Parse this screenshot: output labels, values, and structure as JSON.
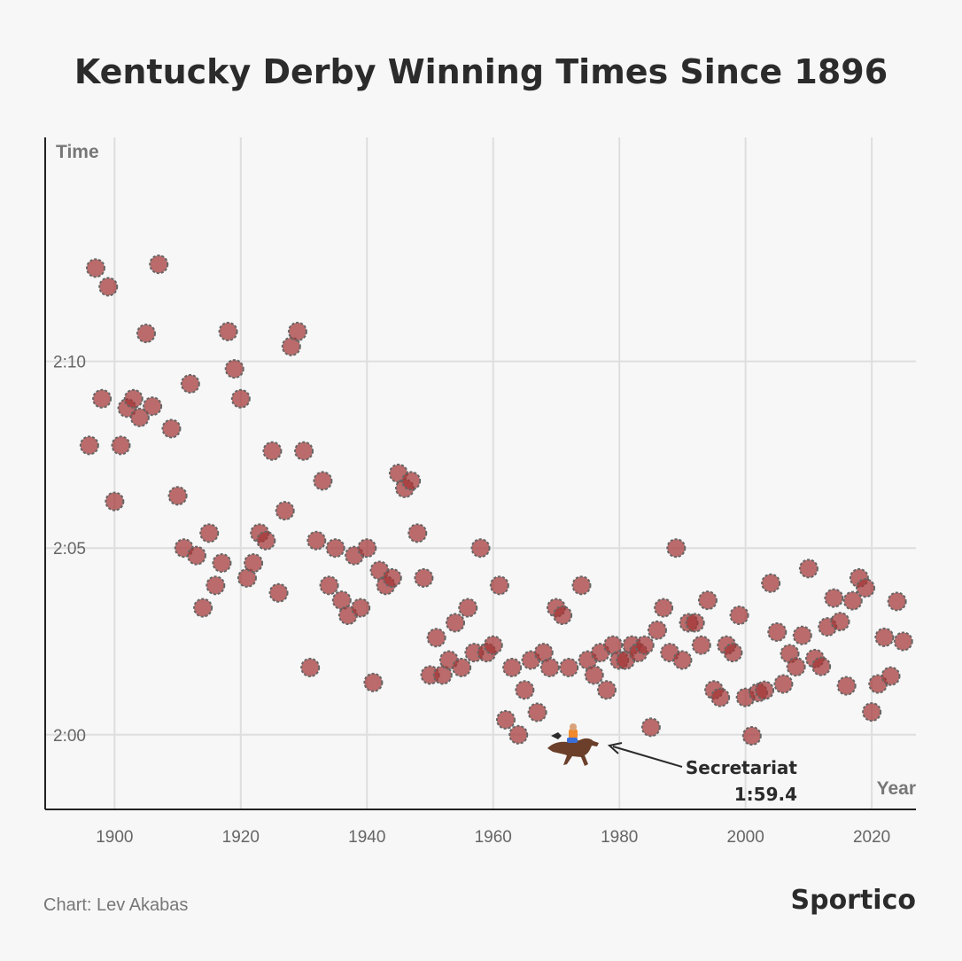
{
  "chart_data": {
    "type": "scatter",
    "title": "Kentucky Derby Winning Times Since 1896",
    "xlabel": "Year",
    "ylabel": "Time",
    "xlim": [
      1889,
      2027
    ],
    "ylim": [
      118.0,
      136.0
    ],
    "x_ticks": [
      1900,
      1920,
      1940,
      1960,
      1980,
      2000,
      2020
    ],
    "x_tick_labels": [
      "1900",
      "1920",
      "1940",
      "1960",
      "1980",
      "2000",
      "2020"
    ],
    "y_ticks": [
      120,
      125,
      130
    ],
    "y_tick_labels": [
      "2:00",
      "2:05",
      "2:10"
    ],
    "grid": true,
    "point_color": "#a33535",
    "points": [
      [
        1896,
        127.75
      ],
      [
        1897,
        132.5
      ],
      [
        1898,
        129.0
      ],
      [
        1899,
        132.0
      ],
      [
        1900,
        126.25
      ],
      [
        1901,
        127.75
      ],
      [
        1902,
        128.75
      ],
      [
        1903,
        129.0
      ],
      [
        1904,
        128.5
      ],
      [
        1905,
        130.75
      ],
      [
        1906,
        128.8
      ],
      [
        1907,
        132.6
      ],
      [
        1909,
        128.2
      ],
      [
        1910,
        126.4
      ],
      [
        1911,
        125.0
      ],
      [
        1912,
        129.4
      ],
      [
        1913,
        124.8
      ],
      [
        1914,
        123.4
      ],
      [
        1915,
        125.4
      ],
      [
        1916,
        124.0
      ],
      [
        1917,
        124.6
      ],
      [
        1918,
        130.8
      ],
      [
        1919,
        129.8
      ],
      [
        1920,
        129.0
      ],
      [
        1921,
        124.2
      ],
      [
        1922,
        124.6
      ],
      [
        1923,
        125.4
      ],
      [
        1924,
        125.2
      ],
      [
        1925,
        127.6
      ],
      [
        1926,
        123.8
      ],
      [
        1927,
        126.0
      ],
      [
        1928,
        130.4
      ],
      [
        1929,
        130.8
      ],
      [
        1930,
        127.6
      ],
      [
        1931,
        121.8
      ],
      [
        1932,
        125.2
      ],
      [
        1933,
        126.8
      ],
      [
        1934,
        124.0
      ],
      [
        1935,
        125.0
      ],
      [
        1936,
        123.6
      ],
      [
        1937,
        123.2
      ],
      [
        1938,
        124.8
      ],
      [
        1939,
        123.4
      ],
      [
        1940,
        125.0
      ],
      [
        1941,
        121.4
      ],
      [
        1942,
        124.4
      ],
      [
        1943,
        124.0
      ],
      [
        1944,
        124.2
      ],
      [
        1945,
        127.0
      ],
      [
        1946,
        126.6
      ],
      [
        1947,
        126.8
      ],
      [
        1948,
        125.4
      ],
      [
        1949,
        124.2
      ],
      [
        1950,
        121.6
      ],
      [
        1951,
        122.6
      ],
      [
        1952,
        121.6
      ],
      [
        1953,
        122.0
      ],
      [
        1954,
        123.0
      ],
      [
        1955,
        121.8
      ],
      [
        1956,
        123.4
      ],
      [
        1957,
        122.2
      ],
      [
        1958,
        125.0
      ],
      [
        1959,
        122.2
      ],
      [
        1960,
        122.4
      ],
      [
        1961,
        124.0
      ],
      [
        1962,
        120.4
      ],
      [
        1963,
        121.8
      ],
      [
        1964,
        120.0
      ],
      [
        1965,
        121.2
      ],
      [
        1966,
        122.0
      ],
      [
        1967,
        120.6
      ],
      [
        1968,
        122.2
      ],
      [
        1969,
        121.8
      ],
      [
        1970,
        123.4
      ],
      [
        1971,
        123.2
      ],
      [
        1972,
        121.8
      ],
      [
        1974,
        124.0
      ],
      [
        1975,
        122.0
      ],
      [
        1976,
        121.6
      ],
      [
        1977,
        122.2
      ],
      [
        1978,
        121.2
      ],
      [
        1979,
        122.4
      ],
      [
        1980,
        122.0
      ],
      [
        1981,
        122.0
      ],
      [
        1982,
        122.4
      ],
      [
        1983,
        122.2
      ],
      [
        1984,
        122.4
      ],
      [
        1985,
        120.2
      ],
      [
        1986,
        122.8
      ],
      [
        1987,
        123.4
      ],
      [
        1988,
        122.2
      ],
      [
        1989,
        125.0
      ],
      [
        1990,
        122.0
      ],
      [
        1991,
        123.0
      ],
      [
        1992,
        123.0
      ],
      [
        1993,
        122.4
      ],
      [
        1994,
        123.6
      ],
      [
        1995,
        121.2
      ],
      [
        1996,
        121.0
      ],
      [
        1997,
        122.4
      ],
      [
        1998,
        122.2
      ],
      [
        1999,
        123.2
      ],
      [
        2000,
        121.0
      ],
      [
        2001,
        119.97
      ],
      [
        2002,
        121.13
      ],
      [
        2003,
        121.19
      ],
      [
        2004,
        124.06
      ],
      [
        2005,
        122.75
      ],
      [
        2006,
        121.36
      ],
      [
        2007,
        122.17
      ],
      [
        2008,
        121.82
      ],
      [
        2009,
        122.66
      ],
      [
        2010,
        124.45
      ],
      [
        2011,
        122.04
      ],
      [
        2012,
        121.83
      ],
      [
        2013,
        122.89
      ],
      [
        2014,
        123.66
      ],
      [
        2015,
        123.03
      ],
      [
        2016,
        121.31
      ],
      [
        2017,
        123.59
      ],
      [
        2018,
        124.2
      ],
      [
        2019,
        123.93
      ],
      [
        2020,
        120.61
      ],
      [
        2021,
        121.36
      ],
      [
        2022,
        122.61
      ],
      [
        2023,
        121.57
      ],
      [
        2024,
        123.57
      ],
      [
        2025,
        122.5
      ]
    ],
    "annotation": {
      "name": "Secretariat",
      "value": "1:59.4",
      "year": 1973,
      "time": 119.4
    }
  },
  "footer": {
    "credit": "Chart: Lev Akabas",
    "brand": "Sportico"
  }
}
